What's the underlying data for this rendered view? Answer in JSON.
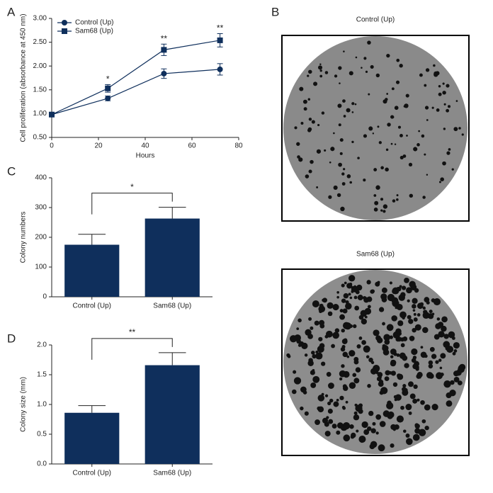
{
  "chart_data": [
    {
      "type": "line",
      "panel_label": "A",
      "x_label": "Hours",
      "y_label": "Cell proliferation (absorbance at 450 nm)",
      "x": [
        0,
        24,
        48,
        72
      ],
      "xlim": [
        0,
        80
      ],
      "xticks": [
        0,
        20,
        40,
        60,
        80
      ],
      "ylim": [
        0.5,
        3.0
      ],
      "yticks": [
        {
          "value": 0.5,
          "label": "0.50"
        },
        {
          "value": 1.0,
          "label": "1.00"
        },
        {
          "value": 1.5,
          "label": "1.50"
        },
        {
          "value": 2.0,
          "label": "2.00"
        },
        {
          "value": 2.5,
          "label": "2.50"
        },
        {
          "value": 3.0,
          "label": "3.00"
        }
      ],
      "legend": "upper left",
      "series": [
        {
          "name": "Control (Up)",
          "color": "#0f2f5c",
          "marker": "circle",
          "values": [
            0.98,
            1.32,
            1.84,
            1.93
          ],
          "errors": [
            0.03,
            0.05,
            0.1,
            0.12
          ]
        },
        {
          "name": "Sam68 (Up)",
          "color": "#0f2f5c",
          "marker": "square",
          "values": [
            0.98,
            1.53,
            2.34,
            2.54
          ],
          "errors": [
            0.03,
            0.08,
            0.12,
            0.14
          ]
        }
      ],
      "annotations": [
        {
          "x": 24,
          "text": "*"
        },
        {
          "x": 48,
          "text": "**"
        },
        {
          "x": 72,
          "text": "**"
        }
      ]
    },
    {
      "type": "bar",
      "panel_label": "C",
      "y_label": "Colony numbers",
      "categories": [
        "Control (Up)",
        "Sam68 (Up)"
      ],
      "values": [
        175,
        263
      ],
      "errors": [
        35,
        38
      ],
      "color": "#0f2f5c",
      "ylim": [
        0,
        400
      ],
      "yticks": [
        0,
        100,
        200,
        300,
        400
      ],
      "significance": "*"
    },
    {
      "type": "bar",
      "panel_label": "D",
      "y_label": "Colony size (mm)",
      "categories": [
        "Control (Up)",
        "Sam68 (Up)"
      ],
      "values": [
        0.86,
        1.66
      ],
      "errors": [
        0.12,
        0.21
      ],
      "color": "#0f2f5c",
      "ylim": [
        0,
        2.0
      ],
      "yticks": [
        {
          "value": 0,
          "label": "0.0"
        },
        {
          "value": 0.5,
          "label": "0.5"
        },
        {
          "value": 1.0,
          "label": "1.0"
        },
        {
          "value": 1.5,
          "label": "1.5"
        },
        {
          "value": 2.0,
          "label": "2.0"
        }
      ],
      "significance": "**"
    }
  ],
  "images": {
    "panel_label": "B",
    "items": [
      {
        "title": "Control (Up)"
      },
      {
        "title": "Sam68 (Up)"
      }
    ]
  }
}
